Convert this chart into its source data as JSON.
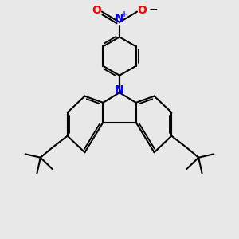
{
  "bg_color": "#e8e8e8",
  "bond_color": "#000000",
  "N_color": "#0000ff",
  "O_color": "#ff0000",
  "line_width": 1.5,
  "figsize": [
    3.0,
    3.0
  ],
  "dpi": 100,
  "xlim": [
    0,
    10
  ],
  "ylim": [
    0,
    10
  ]
}
